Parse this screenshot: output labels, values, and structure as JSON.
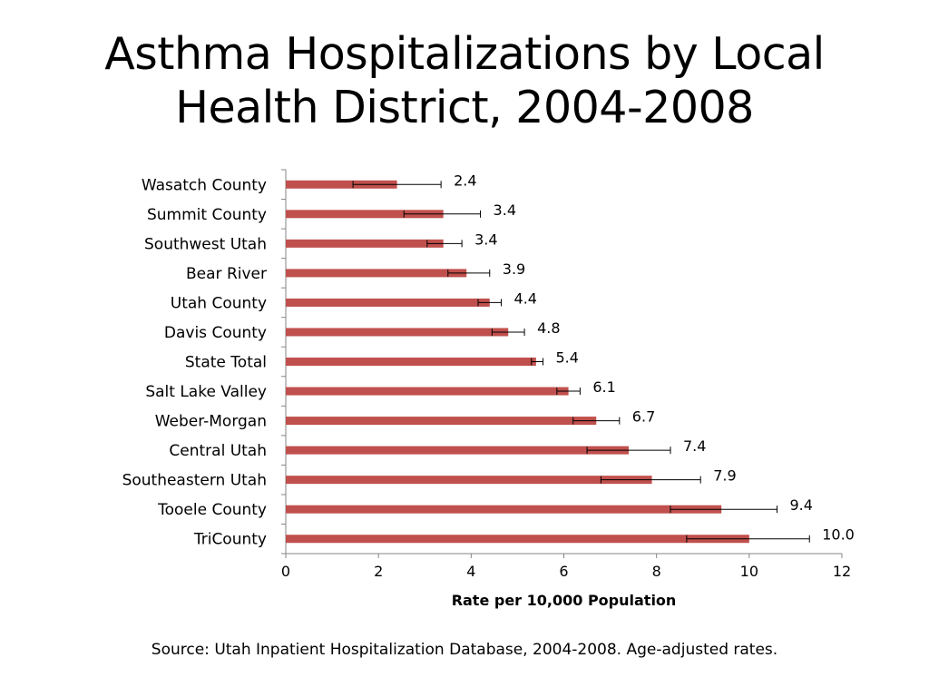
{
  "title": "Asthma Hospitalizations by Local Health District, 2004-2008",
  "source": "Source: Utah Inpatient Hospitalization Database, 2004-2008. Age-adjusted rates.",
  "colors": {
    "bar": "#c0504d",
    "axis": "#868686",
    "error_bar": "#000000"
  },
  "chart_data": {
    "type": "bar",
    "orientation": "horizontal",
    "title": "Asthma Hospitalizations by Local Health District, 2004-2008",
    "xlabel": "Rate per 10,000 Population",
    "ylabel": "",
    "xlim": [
      0,
      12
    ],
    "x_ticks": [
      "0",
      "2",
      "4",
      "6",
      "8",
      "10",
      "12"
    ],
    "grid": false,
    "legend": "none",
    "categories": [
      "Wasatch County",
      "Summit County",
      "Southwest Utah",
      "Bear River",
      "Utah County",
      "Davis County",
      "State Total",
      "Salt Lake Valley",
      "Weber-Morgan",
      "Central Utah",
      "Southeastern Utah",
      "Tooele County",
      "TriCounty"
    ],
    "values": [
      2.4,
      3.4,
      3.4,
      3.9,
      4.4,
      4.8,
      5.4,
      6.1,
      6.7,
      7.4,
      7.9,
      9.4,
      10.0
    ],
    "value_labels": [
      "2.4",
      "3.4",
      "3.4",
      "3.9",
      "4.4",
      "4.8",
      "5.4",
      "6.1",
      "6.7",
      "7.4",
      "7.9",
      "9.4",
      "10.0"
    ],
    "error_low": [
      1.45,
      2.55,
      3.05,
      3.5,
      4.15,
      4.45,
      5.3,
      5.85,
      6.2,
      6.5,
      6.8,
      8.3,
      8.65
    ],
    "error_high": [
      3.35,
      4.2,
      3.8,
      4.4,
      4.65,
      5.15,
      5.55,
      6.35,
      7.2,
      8.3,
      8.95,
      10.6,
      11.3
    ]
  }
}
